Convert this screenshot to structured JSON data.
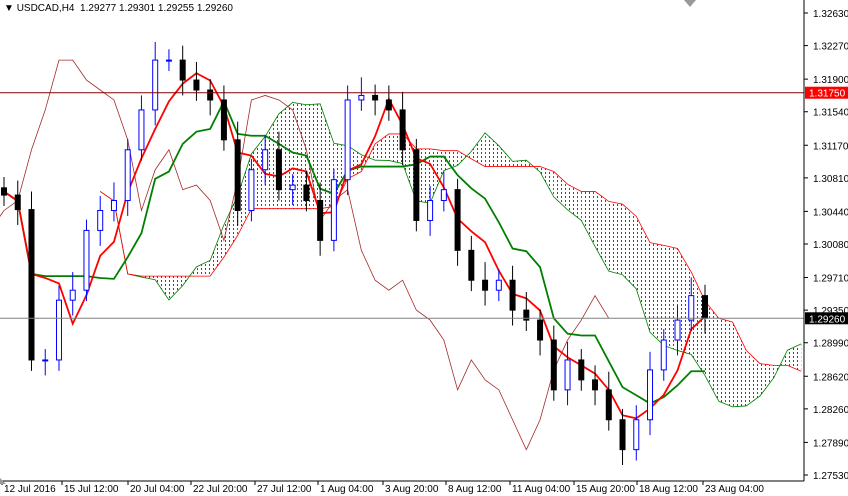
{
  "header": {
    "symbol": "USDCAD,H4",
    "ohlc": "1.29277 1.29301 1.29255 1.29260",
    "menu_icon": "triangle-down-icon"
  },
  "colors": {
    "bull": "#0000ff",
    "bear": "#000000",
    "tenkan": "#ff0000",
    "kijun": "#008000",
    "chikou": "#a52a2a",
    "cloud_up": "#008000",
    "cloud_down": "#ff0000",
    "level_line": "#800000",
    "price_line": "#808080",
    "level_label_bg": "#ff0000",
    "price_label_bg": "#000000"
  },
  "chart_data": {
    "type": "candlestick",
    "indicator": "Ichimoku",
    "ylim": [
      1.2753,
      1.3263
    ],
    "y_ticks": [
      "1.32630",
      "1.32270",
      "1.31900",
      "1.31540",
      "1.31170",
      "1.30810",
      "1.30440",
      "1.30080",
      "1.29710",
      "1.29350",
      "1.28990",
      "1.28620",
      "1.28260",
      "1.27890",
      "1.27530"
    ],
    "x_ticks": [
      "12 Jul 2016",
      "15 Jul 12:00",
      "20 Jul 04:00",
      "22 Jul 20:00",
      "27 Jul 12:00",
      "1 Aug 04:00",
      "3 Aug 20:00",
      "8 Aug 12:00",
      "11 Aug 04:00",
      "15 Aug 20:00",
      "18 Aug 12:00",
      "23 Aug 04:00"
    ],
    "closes": [
      1.3062,
      1.3046,
      1.288,
      1.288,
      1.2946,
      1.2957,
      1.3023,
      1.3045,
      1.3056,
      1.3112,
      1.3156,
      1.3211,
      1.3211,
      1.3189,
      1.3178,
      1.3167,
      1.3123,
      1.3045,
      1.309,
      1.3112,
      1.3068,
      1.3073,
      1.3056,
      1.3012,
      1.3079,
      1.3167,
      1.3172,
      1.3167,
      1.3156,
      1.3112,
      1.3034,
      1.3056,
      1.3068,
      1.3001,
      1.2968,
      1.2957,
      1.2968,
      1.2935,
      1.2924,
      1.2902,
      1.2847,
      1.288,
      1.2858,
      1.2847,
      1.2814,
      1.2781,
      1.2814,
      1.2869,
      1.2902,
      1.2924,
      1.2951,
      1.2926
    ],
    "level_line": {
      "value": "1.31750"
    },
    "current_price": {
      "value": "1.29260"
    }
  }
}
